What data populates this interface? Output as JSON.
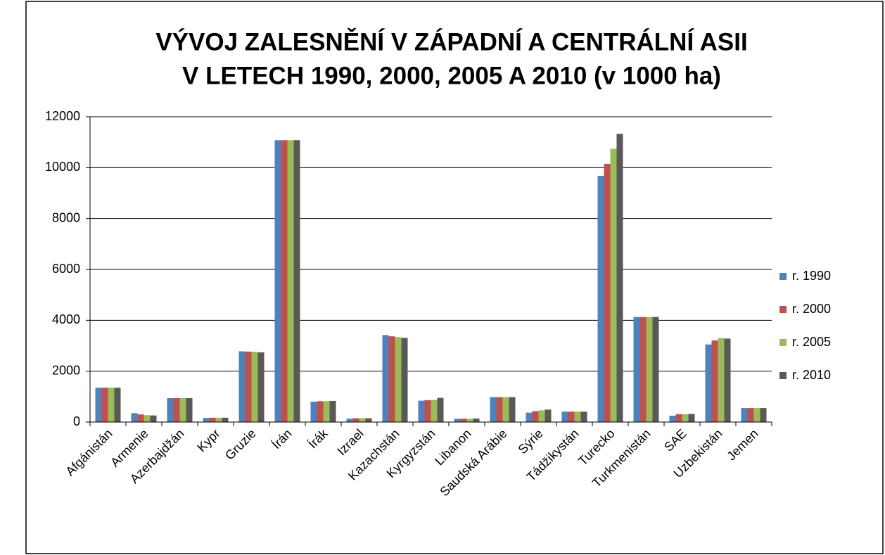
{
  "chart_data": {
    "type": "bar",
    "title": [
      "VÝVOJ ZALESNĚNÍ V ZÁPADNÍ A CENTRÁLNÍ ASII",
      "V LETECH 1990, 2000, 2005 A 2010 (v 1000 ha)"
    ],
    "categories": [
      "Afgánistán",
      "Armenie",
      "Azerbajdžán",
      "Kypr",
      "Gruzie",
      "Írán",
      "Írák",
      "Izrael",
      "Kazachstán",
      "Kyrgyzstán",
      "Libanon",
      "Saudská Arábie",
      "Sýrie",
      "Tádžikystán",
      "Turecko",
      "Turkmenistán",
      "SAE",
      "Uzbekistán",
      "Jemen"
    ],
    "series": [
      {
        "name": "r. 1990",
        "color": "#4f81bd",
        "values": [
          1350,
          350,
          940,
          160,
          2780,
          11080,
          800,
          130,
          3420,
          840,
          130,
          980,
          370,
          410,
          9680,
          4130,
          250,
          3050,
          550
        ]
      },
      {
        "name": "r. 2000",
        "color": "#c0504d",
        "values": [
          1350,
          300,
          940,
          170,
          2770,
          11080,
          820,
          150,
          3370,
          860,
          130,
          980,
          430,
          410,
          10150,
          4130,
          310,
          3210,
          550
        ]
      },
      {
        "name": "r. 2005",
        "color": "#9bbb59",
        "values": [
          1350,
          270,
          940,
          170,
          2760,
          11080,
          820,
          150,
          3340,
          870,
          130,
          980,
          460,
          410,
          10740,
          4130,
          310,
          3300,
          550
        ]
      },
      {
        "name": "r. 2010",
        "color": "#595959",
        "values": [
          1350,
          260,
          940,
          170,
          2740,
          11080,
          830,
          150,
          3310,
          950,
          140,
          980,
          490,
          410,
          11330,
          4130,
          320,
          3280,
          550
        ]
      }
    ],
    "ylim": [
      0,
      12000
    ],
    "yticks": [
      0,
      2000,
      4000,
      6000,
      8000,
      10000,
      12000
    ],
    "grid": true,
    "legend": "right"
  }
}
